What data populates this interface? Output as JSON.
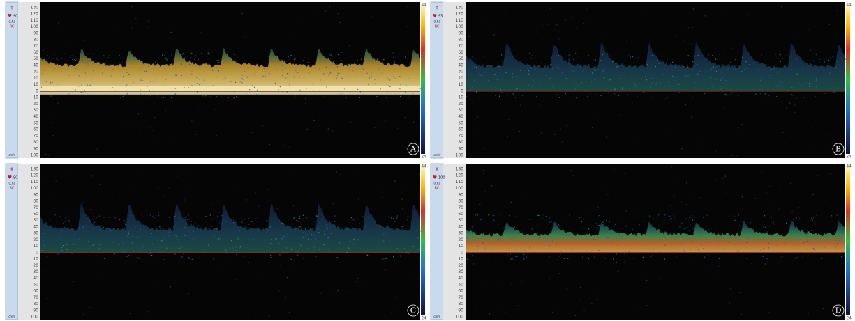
{
  "axis_labels": [
    "130",
    "120",
    "110",
    "100",
    "90",
    "80",
    "70",
    "60",
    "50",
    "40",
    "30",
    "20",
    "10",
    "0",
    "10",
    "20",
    "30",
    "40",
    "50",
    "60",
    "70",
    "80",
    "90",
    "100"
  ],
  "units": "cm/s",
  "panels": [
    {
      "letter": "A",
      "heart_rate": "90",
      "probe": "(LR)",
      "mode": "RC",
      "scale_top": "44",
      "scale_bottom": "24"
    },
    {
      "letter": "B",
      "heart_rate": "93",
      "probe": "(LR)",
      "mode": "RC",
      "scale_top": "44",
      "scale_bottom": "24"
    },
    {
      "letter": "C",
      "heart_rate": "90",
      "probe": "(LR)",
      "mode": "RC",
      "scale_top": "44",
      "scale_bottom": "24"
    },
    {
      "letter": "D",
      "heart_rate": "100",
      "probe": "(LR)",
      "mode": "RC",
      "scale_top": "44",
      "scale_bottom": "24"
    }
  ]
}
